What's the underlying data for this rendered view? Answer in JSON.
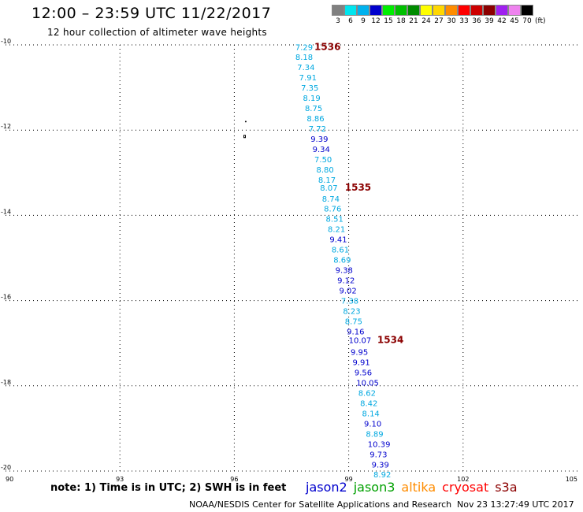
{
  "header": {
    "title": "12:00 – 23:59 UTC 11/22/2017",
    "subtitle": "12 hour collection of altimeter wave heights"
  },
  "color_scale": {
    "unit": "(ft)",
    "entries": [
      {
        "label": "3",
        "color": "#808080"
      },
      {
        "label": "6",
        "color": "#00e5ee"
      },
      {
        "label": "9",
        "color": "#00b2ee"
      },
      {
        "label": "12",
        "color": "#0000cd"
      },
      {
        "label": "15",
        "color": "#00ee00"
      },
      {
        "label": "18",
        "color": "#00c000"
      },
      {
        "label": "21",
        "color": "#008b00"
      },
      {
        "label": "24",
        "color": "#ffff00"
      },
      {
        "label": "27",
        "color": "#ffd700"
      },
      {
        "label": "30",
        "color": "#ff8c00"
      },
      {
        "label": "33",
        "color": "#ff0000"
      },
      {
        "label": "36",
        "color": "#cd0000"
      },
      {
        "label": "39",
        "color": "#8b0000"
      },
      {
        "label": "42",
        "color": "#a020f0"
      },
      {
        "label": "45",
        "color": "#ee82ee"
      },
      {
        "label": "70",
        "color": "#000000"
      }
    ]
  },
  "footer": {
    "note": "note: 1) Time is in UTC; 2) SWH is in feet",
    "credit": "NOAA/NESDIS Center for Satellite Applications and Research",
    "timestamp": "Nov 23 13:27:49 UTC 2017"
  },
  "legend": [
    {
      "name": "jason2",
      "color": "#0000cd"
    },
    {
      "name": "jason3",
      "color": "#00a000"
    },
    {
      "name": "altika",
      "color": "#ff8c00"
    },
    {
      "name": "cryosat",
      "color": "#ff0000"
    },
    {
      "name": "s3a",
      "color": "#8b0000"
    }
  ],
  "chart_data": {
    "type": "scatter",
    "xlim": [
      90,
      105
    ],
    "ylim": [
      -20,
      -10
    ],
    "x_ticks": [
      "90",
      "93",
      "96",
      "99",
      "102",
      "105"
    ],
    "y_ticks": [
      "-10",
      "-12",
      "-14",
      "-16",
      "-18",
      "-20"
    ],
    "grid": true,
    "colors": {
      "light": "#00a8e0",
      "dark": "#0000cd",
      "time": "#8b0000"
    },
    "points": [
      {
        "lon": 97.6,
        "lat": -10.05,
        "value": "7.29",
        "shade": "light"
      },
      {
        "lon": 97.6,
        "lat": -10.28,
        "value": "8.18",
        "shade": "light"
      },
      {
        "lon": 97.65,
        "lat": -10.52,
        "value": "7.34",
        "shade": "light"
      },
      {
        "lon": 97.7,
        "lat": -10.76,
        "value": "7.91",
        "shade": "light"
      },
      {
        "lon": 97.75,
        "lat": -11.0,
        "value": "7.35",
        "shade": "light"
      },
      {
        "lon": 97.8,
        "lat": -11.24,
        "value": "8.19",
        "shade": "light"
      },
      {
        "lon": 97.85,
        "lat": -11.48,
        "value": "8.75",
        "shade": "light"
      },
      {
        "lon": 97.9,
        "lat": -11.72,
        "value": "8.86",
        "shade": "light"
      },
      {
        "lon": 97.95,
        "lat": -11.96,
        "value": "7.72",
        "shade": "light"
      },
      {
        "lon": 98.0,
        "lat": -12.2,
        "value": "9.39",
        "shade": "dark"
      },
      {
        "lon": 98.05,
        "lat": -12.44,
        "value": "9.34",
        "shade": "dark"
      },
      {
        "lon": 98.1,
        "lat": -12.68,
        "value": "7.50",
        "shade": "light"
      },
      {
        "lon": 98.15,
        "lat": -12.92,
        "value": "8.80",
        "shade": "light"
      },
      {
        "lon": 98.2,
        "lat": -13.16,
        "value": "8.17",
        "shade": "light"
      },
      {
        "lon": 98.25,
        "lat": -13.35,
        "value": "8.07",
        "shade": "light"
      },
      {
        "lon": 98.3,
        "lat": -13.6,
        "value": "8.74",
        "shade": "light"
      },
      {
        "lon": 98.35,
        "lat": -13.84,
        "value": "8.76",
        "shade": "light"
      },
      {
        "lon": 98.4,
        "lat": -14.08,
        "value": "8.51",
        "shade": "light"
      },
      {
        "lon": 98.45,
        "lat": -14.32,
        "value": "8.21",
        "shade": "light"
      },
      {
        "lon": 98.5,
        "lat": -14.56,
        "value": "9.41",
        "shade": "dark"
      },
      {
        "lon": 98.55,
        "lat": -14.8,
        "value": "8.61",
        "shade": "light"
      },
      {
        "lon": 98.6,
        "lat": -15.04,
        "value": "8.69",
        "shade": "light"
      },
      {
        "lon": 98.65,
        "lat": -15.28,
        "value": "9.38",
        "shade": "dark"
      },
      {
        "lon": 98.7,
        "lat": -15.52,
        "value": "9.12",
        "shade": "dark"
      },
      {
        "lon": 98.75,
        "lat": -15.76,
        "value": "9.02",
        "shade": "dark"
      },
      {
        "lon": 98.8,
        "lat": -16.0,
        "value": "7.38",
        "shade": "light"
      },
      {
        "lon": 98.85,
        "lat": -16.24,
        "value": "8.23",
        "shade": "light"
      },
      {
        "lon": 98.9,
        "lat": -16.48,
        "value": "8.75",
        "shade": "light"
      },
      {
        "lon": 98.95,
        "lat": -16.72,
        "value": "9.16",
        "shade": "dark"
      },
      {
        "lon": 99.0,
        "lat": -16.92,
        "value": "10.07",
        "shade": "dark"
      },
      {
        "lon": 99.05,
        "lat": -17.2,
        "value": "9.95",
        "shade": "dark"
      },
      {
        "lon": 99.1,
        "lat": -17.44,
        "value": "9.91",
        "shade": "dark"
      },
      {
        "lon": 99.15,
        "lat": -17.68,
        "value": "9.56",
        "shade": "dark"
      },
      {
        "lon": 99.2,
        "lat": -17.92,
        "value": "10.05",
        "shade": "dark"
      },
      {
        "lon": 99.25,
        "lat": -18.16,
        "value": "8.62",
        "shade": "light"
      },
      {
        "lon": 99.3,
        "lat": -18.4,
        "value": "8.42",
        "shade": "light"
      },
      {
        "lon": 99.35,
        "lat": -18.64,
        "value": "8.14",
        "shade": "light"
      },
      {
        "lon": 99.4,
        "lat": -18.88,
        "value": "9.10",
        "shade": "dark"
      },
      {
        "lon": 99.45,
        "lat": -19.12,
        "value": "8.89",
        "shade": "light"
      },
      {
        "lon": 99.5,
        "lat": -19.36,
        "value": "10.39",
        "shade": "dark"
      },
      {
        "lon": 99.55,
        "lat": -19.6,
        "value": "9.73",
        "shade": "dark"
      },
      {
        "lon": 99.6,
        "lat": -19.84,
        "value": "9.39",
        "shade": "dark"
      },
      {
        "lon": 99.65,
        "lat": -20.07,
        "value": "8.92",
        "shade": "light"
      }
    ],
    "time_labels": [
      {
        "lon": 98.1,
        "lat": -10.05,
        "text": "1536"
      },
      {
        "lon": 98.9,
        "lat": -13.35,
        "text": "1535"
      },
      {
        "lon": 99.75,
        "lat": -16.92,
        "text": "1534"
      }
    ]
  }
}
